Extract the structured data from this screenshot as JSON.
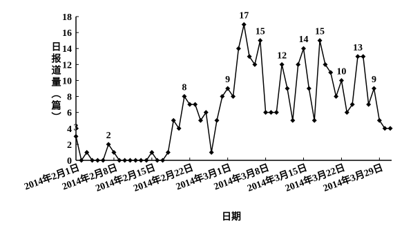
{
  "chart_data": {
    "type": "line",
    "y_label": "日报道量（篇）",
    "x_label": "日期",
    "categories": [
      "2014年2月1日",
      null,
      null,
      null,
      null,
      null,
      null,
      "2014年2月8日",
      null,
      null,
      null,
      null,
      null,
      null,
      "2014年2月15日",
      null,
      null,
      null,
      null,
      null,
      null,
      "2014年2月22日",
      null,
      null,
      null,
      null,
      null,
      null,
      "2014年3月1日",
      null,
      null,
      null,
      null,
      null,
      null,
      "2014年3月8日",
      null,
      null,
      null,
      null,
      null,
      null,
      "2014年3月15日",
      null,
      null,
      null,
      null,
      null,
      null,
      "2014年3月22日",
      null,
      null,
      null,
      null,
      null,
      null,
      "2014年3月29日",
      null,
      null
    ],
    "series": [
      {
        "name": null,
        "color": "#000000",
        "values": [
          3,
          0,
          1,
          0,
          0,
          0,
          2,
          1,
          0,
          0,
          0,
          0,
          0,
          0,
          1,
          0,
          0,
          1,
          5,
          4,
          8,
          7,
          7,
          5,
          6,
          1,
          5,
          8,
          9,
          8,
          14,
          17,
          13,
          12,
          15,
          6,
          6,
          6,
          12,
          9,
          5,
          12,
          14,
          9,
          5,
          15,
          12,
          11,
          8,
          10,
          6,
          7,
          13,
          13,
          7,
          9,
          5,
          4,
          4
        ],
        "value_labels": [
          "3",
          null,
          null,
          null,
          null,
          null,
          "2",
          null,
          null,
          null,
          null,
          null,
          null,
          null,
          null,
          null,
          null,
          null,
          null,
          null,
          "8",
          null,
          null,
          null,
          null,
          null,
          null,
          null,
          "9",
          null,
          null,
          "17",
          null,
          null,
          "15",
          null,
          null,
          null,
          "12",
          null,
          null,
          null,
          "14",
          null,
          null,
          "15",
          null,
          null,
          null,
          "10",
          null,
          null,
          "13",
          null,
          null,
          "9",
          null,
          null,
          null
        ]
      }
    ],
    "ylim": [
      0,
      18
    ],
    "yticks": [
      0,
      2,
      4,
      6,
      8,
      10,
      12,
      14,
      16,
      18
    ],
    "grid": false
  }
}
